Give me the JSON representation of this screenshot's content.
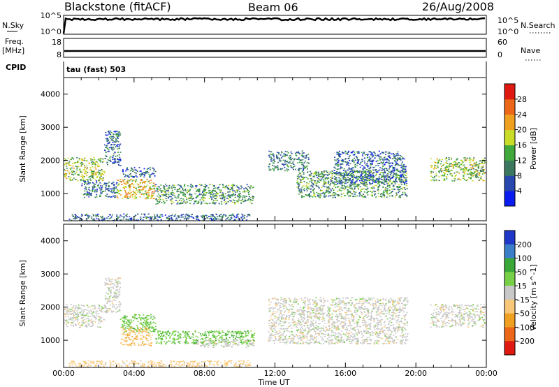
{
  "header": {
    "site": "Blackstone (fitACF)",
    "beam": "Beam 06",
    "date": "26/Aug/2008"
  },
  "noise_panel": {
    "left_label": "N.Sky",
    "right_label": "N.Search",
    "left_ticks": [
      "10^5",
      "10^0"
    ],
    "right_ticks": [
      "10^5",
      "10^0"
    ]
  },
  "freq_panel": {
    "left_label_1": "Freq.",
    "left_label_2": "[MHz]",
    "right_label": "Nave",
    "left_ticks": [
      "18",
      "8"
    ],
    "right_ticks": [
      "60",
      "0"
    ]
  },
  "cpid": {
    "label": "CPID",
    "mode_text": "tau (fast) 503"
  },
  "colors": {
    "power": [
      "#0a1cf0",
      "#2848b0",
      "#3c7860",
      "#41a83c",
      "#c8dc28",
      "#f0a020",
      "#ec6818",
      "#e01a10"
    ],
    "velocity": [
      "#e01a10",
      "#ec6818",
      "#f0a020",
      "#f8c878",
      "#c8c8c8",
      "#78d048",
      "#3aa838",
      "#3a7fc8",
      "#2038c8"
    ]
  },
  "chart_data": [
    {
      "type": "heatmap",
      "title": "",
      "parameter": "Power",
      "ylabel": "Slant Range [km]",
      "xlabel": "Time UT",
      "x_ticks": [
        "00:00",
        "04:00",
        "08:00",
        "12:00",
        "16:00",
        "20:00",
        "00:00"
      ],
      "y_ticks": [
        "1000",
        "2000",
        "3000",
        "4000"
      ],
      "ylim": [
        180,
        4500
      ],
      "xlim": [
        "00:00",
        "24:00"
      ],
      "colorbar": {
        "label": "Power [dB]",
        "ticks": [
          "4",
          "8",
          "12",
          "16",
          "20",
          "24",
          "28"
        ],
        "range": [
          0,
          32
        ]
      },
      "regions": [
        {
          "t": [
            0.0,
            2.3
          ],
          "range": [
            1400,
            2100
          ],
          "level": 16
        },
        {
          "t": [
            2.3,
            3.2
          ],
          "range": [
            1850,
            2900
          ],
          "level": 8
        },
        {
          "t": [
            1.0,
            3.0
          ],
          "range": [
            900,
            1400
          ],
          "level": 8
        },
        {
          "t": [
            3.0,
            5.2
          ],
          "range": [
            850,
            1450
          ],
          "level": 20
        },
        {
          "t": [
            3.3,
            5.2
          ],
          "range": [
            1500,
            1800
          ],
          "level": 8
        },
        {
          "t": [
            5.2,
            10.8
          ],
          "range": [
            700,
            1300
          ],
          "level": 12
        },
        {
          "t": [
            0.3,
            10.6
          ],
          "range": [
            200,
            400
          ],
          "level": 8
        },
        {
          "t": [
            11.6,
            13.9
          ],
          "range": [
            1700,
            2300
          ],
          "level": 10
        },
        {
          "t": [
            13.2,
            19.5
          ],
          "range": [
            900,
            1700
          ],
          "level": 12
        },
        {
          "t": [
            15.3,
            19.4
          ],
          "range": [
            1300,
            2300
          ],
          "level": 8
        },
        {
          "t": [
            20.8,
            23.9
          ],
          "range": [
            1400,
            2100
          ],
          "level": 16
        }
      ]
    },
    {
      "type": "heatmap",
      "title": "",
      "parameter": "Velocity",
      "ylabel": "Slant Range [km]",
      "xlabel": "Time UT",
      "x_ticks": [
        "00:00",
        "04:00",
        "08:00",
        "12:00",
        "16:00",
        "20:00",
        "00:00"
      ],
      "y_ticks": [
        "1000",
        "2000",
        "3000",
        "4000"
      ],
      "ylim": [
        180,
        4500
      ],
      "xlim": [
        "00:00",
        "24:00"
      ],
      "colorbar": {
        "label": "Velocity [m s^-1]",
        "ticks": [
          "200",
          "100",
          "50",
          "15",
          "-15",
          "-50",
          "-100",
          "-200"
        ],
        "range": [
          -250,
          250
        ]
      },
      "regions": [
        {
          "t": [
            0.0,
            2.3
          ],
          "range": [
            1400,
            2100
          ],
          "level": 0
        },
        {
          "t": [
            2.3,
            3.2
          ],
          "range": [
            1850,
            2900
          ],
          "level": 0
        },
        {
          "t": [
            3.2,
            5.2
          ],
          "range": [
            1250,
            1800
          ],
          "level": 40
        },
        {
          "t": [
            3.2,
            5.0
          ],
          "range": [
            850,
            1400
          ],
          "level": -40
        },
        {
          "t": [
            5.2,
            10.8
          ],
          "range": [
            900,
            1300
          ],
          "level": 40
        },
        {
          "t": [
            7.5,
            10.8
          ],
          "range": [
            800,
            1050
          ],
          "level": 0
        },
        {
          "t": [
            0.3,
            10.6
          ],
          "range": [
            200,
            400
          ],
          "level": -30
        },
        {
          "t": [
            11.6,
            19.5
          ],
          "range": [
            900,
            2300
          ],
          "level": 0
        },
        {
          "t": [
            20.8,
            23.9
          ],
          "range": [
            1400,
            2100
          ],
          "level": 0
        }
      ]
    }
  ]
}
